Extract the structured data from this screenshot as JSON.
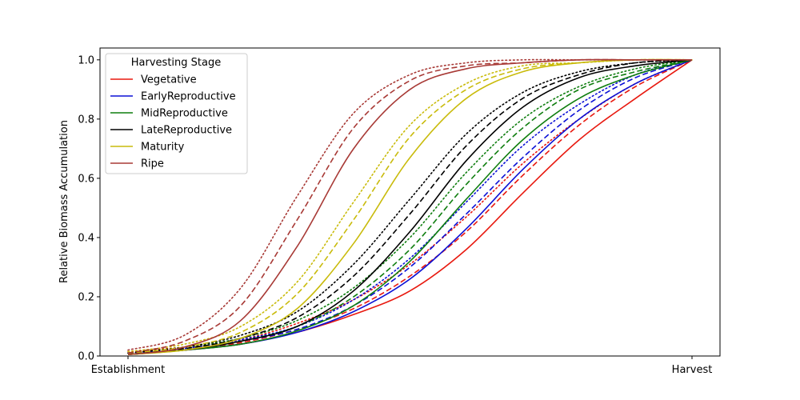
{
  "chart_data": {
    "type": "line",
    "title": "",
    "xlabel": "",
    "ylabel": "Relative Biomass Accumulation",
    "xlim": [
      0,
      1
    ],
    "ylim": [
      0,
      1.04
    ],
    "x_ticks": [
      {
        "value": 0,
        "label": "Establishment"
      },
      {
        "value": 1,
        "label": "Harvest"
      }
    ],
    "y_ticks": [
      "0.0",
      "0.2",
      "0.4",
      "0.6",
      "0.8",
      "1.0"
    ],
    "grid": false,
    "legend": {
      "title": "Harvesting Stage",
      "placement": "top-left",
      "entries": [
        {
          "name": "Vegetative",
          "color": "#e8190f"
        },
        {
          "name": "EarlyReproductive",
          "color": "#0b10d6"
        },
        {
          "name": "MidReproductive",
          "color": "#0f7e0f"
        },
        {
          "name": "LateReproductive",
          "color": "#000000"
        },
        {
          "name": "Maturity",
          "color": "#c9bb0b"
        },
        {
          "name": "Ripe",
          "color": "#a83a36"
        }
      ]
    },
    "line_styles": [
      "solid",
      "dashed",
      "dotted"
    ],
    "x": [
      0,
      0.1,
      0.2,
      0.3,
      0.4,
      0.5,
      0.6,
      0.7,
      0.8,
      0.9,
      1.0
    ],
    "series": [
      {
        "stage": "Vegetative",
        "style": "solid",
        "color": "#e8190f",
        "values": [
          0.005,
          0.02,
          0.04,
          0.08,
          0.14,
          0.22,
          0.36,
          0.55,
          0.73,
          0.87,
          1.0
        ]
      },
      {
        "stage": "Vegetative",
        "style": "dashed",
        "color": "#e8190f",
        "values": [
          0.01,
          0.02,
          0.045,
          0.09,
          0.16,
          0.27,
          0.42,
          0.61,
          0.78,
          0.91,
          1.0
        ]
      },
      {
        "stage": "Vegetative",
        "style": "dotted",
        "color": "#e8190f",
        "values": [
          0.015,
          0.03,
          0.055,
          0.11,
          0.19,
          0.31,
          0.47,
          0.65,
          0.8,
          0.92,
          1.0
        ]
      },
      {
        "stage": "EarlyReproductive",
        "style": "solid",
        "color": "#0b10d6",
        "values": [
          0.005,
          0.02,
          0.04,
          0.08,
          0.15,
          0.26,
          0.43,
          0.63,
          0.8,
          0.92,
          1.0
        ]
      },
      {
        "stage": "EarlyReproductive",
        "style": "dashed",
        "color": "#0b10d6",
        "values": [
          0.01,
          0.02,
          0.05,
          0.09,
          0.17,
          0.3,
          0.48,
          0.67,
          0.83,
          0.94,
          1.0
        ]
      },
      {
        "stage": "EarlyReproductive",
        "style": "dotted",
        "color": "#0b10d6",
        "values": [
          0.01,
          0.025,
          0.055,
          0.1,
          0.19,
          0.33,
          0.52,
          0.71,
          0.85,
          0.95,
          1.0
        ]
      },
      {
        "stage": "MidReproductive",
        "style": "solid",
        "color": "#0f7e0f",
        "values": [
          0.005,
          0.02,
          0.04,
          0.085,
          0.17,
          0.32,
          0.53,
          0.73,
          0.87,
          0.95,
          1.0
        ]
      },
      {
        "stage": "MidReproductive",
        "style": "dashed",
        "color": "#0f7e0f",
        "values": [
          0.01,
          0.02,
          0.05,
          0.1,
          0.2,
          0.36,
          0.58,
          0.77,
          0.9,
          0.96,
          1.0
        ]
      },
      {
        "stage": "MidReproductive",
        "style": "dotted",
        "color": "#0f7e0f",
        "values": [
          0.01,
          0.03,
          0.06,
          0.12,
          0.23,
          0.4,
          0.62,
          0.8,
          0.91,
          0.97,
          1.0
        ]
      },
      {
        "stage": "LateReproductive",
        "style": "solid",
        "color": "#000000",
        "values": [
          0.005,
          0.02,
          0.05,
          0.1,
          0.22,
          0.42,
          0.66,
          0.84,
          0.94,
          0.98,
          1.0
        ]
      },
      {
        "stage": "LateReproductive",
        "style": "dashed",
        "color": "#000000",
        "values": [
          0.01,
          0.025,
          0.06,
          0.13,
          0.27,
          0.48,
          0.71,
          0.87,
          0.95,
          0.99,
          1.0
        ]
      },
      {
        "stage": "LateReproductive",
        "style": "dotted",
        "color": "#000000",
        "values": [
          0.01,
          0.03,
          0.07,
          0.15,
          0.31,
          0.53,
          0.75,
          0.89,
          0.96,
          0.99,
          1.0
        ]
      },
      {
        "stage": "Maturity",
        "style": "solid",
        "color": "#c9bb0b",
        "values": [
          0.005,
          0.02,
          0.06,
          0.16,
          0.38,
          0.67,
          0.87,
          0.96,
          0.99,
          1.0,
          1.0
        ]
      },
      {
        "stage": "Maturity",
        "style": "dashed",
        "color": "#c9bb0b",
        "values": [
          0.01,
          0.03,
          0.08,
          0.21,
          0.46,
          0.74,
          0.9,
          0.97,
          0.99,
          1.0,
          1.0
        ]
      },
      {
        "stage": "Maturity",
        "style": "dotted",
        "color": "#c9bb0b",
        "values": [
          0.015,
          0.04,
          0.1,
          0.25,
          0.52,
          0.78,
          0.92,
          0.98,
          0.99,
          1.0,
          1.0
        ]
      },
      {
        "stage": "Ripe",
        "style": "solid",
        "color": "#a83a36",
        "values": [
          0.005,
          0.03,
          0.12,
          0.37,
          0.7,
          0.9,
          0.97,
          0.99,
          1.0,
          1.0,
          1.0
        ]
      },
      {
        "stage": "Ripe",
        "style": "dashed",
        "color": "#a83a36",
        "values": [
          0.01,
          0.05,
          0.17,
          0.46,
          0.77,
          0.93,
          0.98,
          0.99,
          1.0,
          1.0,
          1.0
        ]
      },
      {
        "stage": "Ripe",
        "style": "dotted",
        "color": "#a83a36",
        "values": [
          0.02,
          0.07,
          0.23,
          0.54,
          0.82,
          0.95,
          0.99,
          1.0,
          1.0,
          1.0,
          1.0
        ]
      }
    ]
  }
}
